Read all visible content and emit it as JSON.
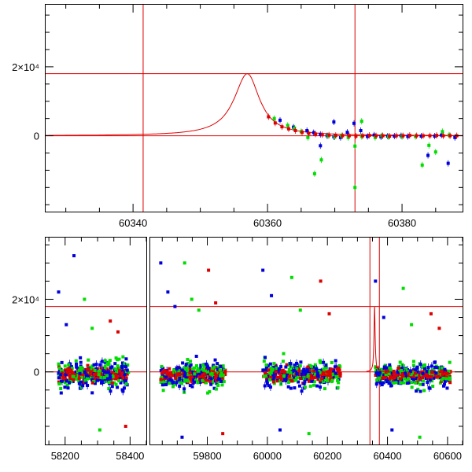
{
  "chart_data": [
    {
      "type": "scatter",
      "panel": "top",
      "xlim": [
        60327,
        60389
      ],
      "ylim": [
        -22000,
        38000
      ],
      "x_ticks": [
        60340,
        60360,
        60380
      ],
      "x_tick_labels": [
        "60340",
        "60360",
        "60380"
      ],
      "y_ticks": [
        0,
        20000
      ],
      "y_tick_labels": [
        "0",
        "2×10⁴"
      ],
      "reference_lines": {
        "vertical": [
          60341.5,
          60373
        ],
        "horizontal": [
          0,
          18000
        ]
      },
      "model_curve": {
        "peak_x": 60357,
        "peak_y": 18000,
        "color": "#dd0000"
      },
      "series": [
        {
          "name": "",
          "color": "#0000dd",
          "points": [
            [
              60362,
              4500
            ],
            [
              60364,
              2500
            ],
            [
              60366,
              1500
            ],
            [
              60367,
              900
            ],
            [
              60368,
              400
            ],
            [
              60369,
              0
            ],
            [
              60370,
              -300
            ],
            [
              60371,
              -500
            ],
            [
              60372,
              1000
            ],
            [
              60373,
              3600
            ],
            [
              60374,
              1500
            ],
            [
              60375,
              -200
            ],
            [
              60377,
              -300
            ],
            [
              60379,
              -100
            ],
            [
              60380,
              0
            ],
            [
              60381,
              -200
            ],
            [
              60383,
              -100
            ],
            [
              60384,
              -5700
            ],
            [
              60386,
              200
            ],
            [
              60387,
              -8000
            ],
            [
              60388,
              -500
            ],
            [
              60378,
              -100
            ],
            [
              60376,
              200
            ],
            [
              60368,
              -2900
            ],
            [
              60370,
              4000
            ],
            [
              60385,
              -100
            ]
          ]
        },
        {
          "name": "",
          "color": "#00dd00",
          "points": [
            [
              60361,
              5000
            ],
            [
              60363,
              3000
            ],
            [
              60365,
              1200
            ],
            [
              60366,
              -500
            ],
            [
              60367,
              -11000
            ],
            [
              60368,
              -7000
            ],
            [
              60369,
              0
            ],
            [
              60370,
              -300
            ],
            [
              60371,
              0
            ],
            [
              60373,
              -15000
            ],
            [
              60373,
              -3000
            ],
            [
              60374,
              -200
            ],
            [
              60374,
              4200
            ],
            [
              60376,
              -500
            ],
            [
              60377,
              0
            ],
            [
              60378,
              -300
            ],
            [
              60380,
              -200
            ],
            [
              60382,
              -200
            ],
            [
              60383,
              -8500
            ],
            [
              60384,
              -2800
            ],
            [
              60385,
              -4700
            ],
            [
              60386,
              1200
            ],
            [
              60387,
              200
            ],
            [
              60364,
              2200
            ],
            [
              60372,
              -500
            ]
          ]
        },
        {
          "name": "",
          "color": "#dd0000",
          "points": [
            [
              60360,
              5500
            ],
            [
              60361,
              3700
            ],
            [
              60362,
              2600
            ],
            [
              60363,
              2000
            ],
            [
              60364,
              1500
            ],
            [
              60365,
              1000
            ],
            [
              60366,
              700
            ],
            [
              60367,
              500
            ],
            [
              60368,
              300
            ],
            [
              60369,
              200
            ],
            [
              60370,
              100
            ],
            [
              60371,
              0
            ],
            [
              60372,
              0
            ],
            [
              60373,
              -100
            ],
            [
              60374,
              0
            ],
            [
              60375,
              100
            ],
            [
              60376,
              0
            ],
            [
              60377,
              0
            ],
            [
              60378,
              -100
            ],
            [
              60379,
              0
            ],
            [
              60380,
              0
            ],
            [
              60381,
              100
            ],
            [
              60382,
              0
            ],
            [
              60383,
              0
            ],
            [
              60384,
              0
            ],
            [
              60385,
              100
            ],
            [
              60386,
              0
            ],
            [
              60387,
              0
            ],
            [
              60388,
              0
            ]
          ]
        }
      ]
    },
    {
      "type": "scatter",
      "panel": "bottom",
      "broken_x_axis": true,
      "segments": [
        {
          "xlim": [
            58140,
            58450
          ],
          "x_ticks": [
            58200,
            58400
          ],
          "x_tick_labels": [
            "58200",
            "58400"
          ]
        },
        {
          "xlim": [
            59610,
            60650
          ],
          "x_ticks": [
            59800,
            60000,
            60200,
            60400,
            60600
          ],
          "x_tick_labels": [
            "59800",
            "60000",
            "60200",
            "60400",
            "60600"
          ]
        }
      ],
      "ylim": [
        -20000,
        37000
      ],
      "y_ticks": [
        0,
        20000
      ],
      "y_tick_labels": [
        "0",
        "2×10⁴"
      ],
      "reference_lines": {
        "vertical": [
          60341.5,
          60373
        ],
        "horizontal": [
          0,
          18000
        ]
      },
      "data_clusters": [
        {
          "x_range": [
            58180,
            58395
          ],
          "y_spread": 9000,
          "outliers_y": [
            22000,
            20000,
            14000,
            13000,
            12000,
            11000,
            32000,
            -16000,
            -15000
          ]
        },
        {
          "x_range": [
            59645,
            59860
          ],
          "y_spread": 9000,
          "outliers_y": [
            30000,
            30000,
            28000,
            22000,
            20000,
            19000,
            18000,
            17000,
            -17000,
            -18000
          ]
        },
        {
          "x_range": [
            59985,
            60245
          ],
          "y_spread": 9000,
          "outliers_y": [
            28000,
            26000,
            25000,
            21000,
            17000,
            16000,
            -16000,
            -17000
          ]
        },
        {
          "x_range": [
            60360,
            60610
          ],
          "y_spread": 8000,
          "outliers_y": [
            25000,
            23000,
            16000,
            15000,
            13000,
            12000,
            -16000,
            -18000
          ]
        }
      ],
      "series": [
        {
          "name": "",
          "color": "#0000dd"
        },
        {
          "name": "",
          "color": "#00dd00"
        },
        {
          "name": "",
          "color": "#dd0000"
        }
      ]
    }
  ]
}
